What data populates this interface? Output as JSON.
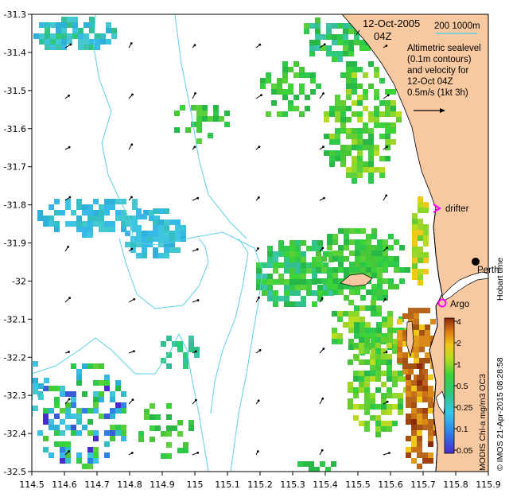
{
  "map": {
    "title_date": "12-Oct-2005",
    "title_time": "04Z",
    "bathy_legend": "200  1000m",
    "sealevel_note": [
      "Altimetric sealevel",
      "(0.1m contours)",
      "and velocity for",
      "12-Oct 04Z",
      "0.5m/s (1kt 3h)"
    ],
    "labels": {
      "drifter": "drifter",
      "argo": "Argo",
      "perth": "Perth",
      "hobart_time": "Hobart time"
    },
    "colorbar": {
      "title": "MODIS Chl-a mg/m3 OC3",
      "ticks": [
        "4",
        "2",
        "1",
        "0.5",
        "0.25",
        "0.1",
        "0.05"
      ]
    },
    "credit": "© IMOS 21-Apr-2015 08:28:58",
    "x_ticks": [
      "114.5",
      "114.6",
      "114.7",
      "114.8",
      "114.9",
      "115",
      "115.1",
      "115.2",
      "115.3",
      "115.4",
      "115.5",
      "115.6",
      "115.7",
      "115.8",
      "115.9"
    ],
    "y_ticks": [
      "-31.3",
      "-31.4",
      "-31.5",
      "-31.6",
      "-31.7",
      "-31.8",
      "-31.9",
      "-32",
      "-32.1",
      "-32.2",
      "-32.3",
      "-32.4",
      "-32.5"
    ],
    "colors": {
      "land": "#f8c9a0",
      "bathy_contour": "#5ad1e8",
      "cloud_gap": "#ffffff",
      "chl_low": "#36b9e6",
      "chl_mid": "#2ec94a",
      "chl_high": "#b8651c",
      "drifter_marker": "#ff00ff"
    }
  }
}
